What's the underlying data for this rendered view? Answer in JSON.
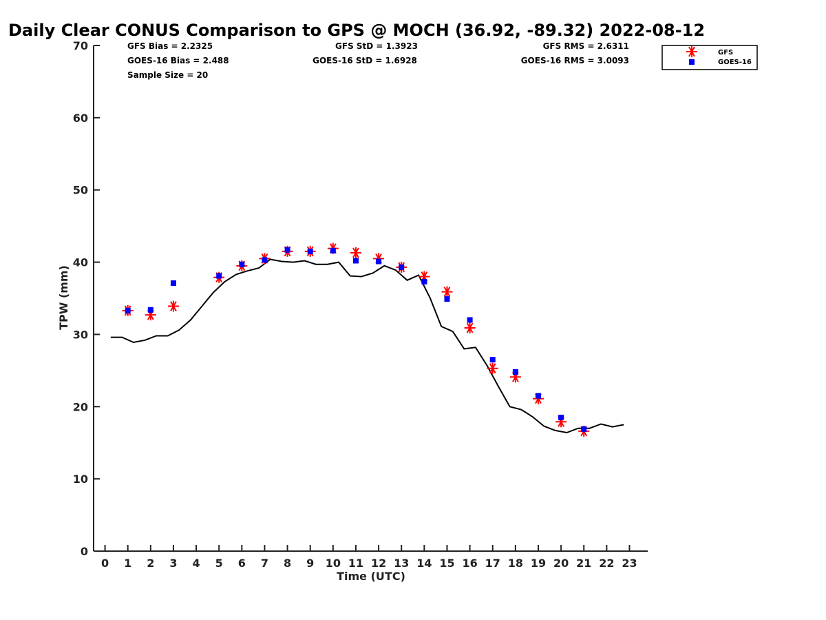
{
  "chart_data": {
    "type": "scatter",
    "title": "Daily Clear CONUS Comparison to GPS @ MOCH (36.92, -89.32) 2022-08-12",
    "xlabel": "Time (UTC)",
    "ylabel": "TPW (mm)",
    "xlim": [
      -0.5,
      23.8
    ],
    "ylim": [
      0,
      70
    ],
    "x_ticks": [
      0,
      1,
      2,
      3,
      4,
      5,
      6,
      7,
      8,
      9,
      10,
      11,
      12,
      13,
      14,
      15,
      16,
      17,
      18,
      19,
      20,
      21,
      22,
      23
    ],
    "y_ticks": [
      0,
      10,
      20,
      30,
      40,
      50,
      60,
      70
    ],
    "grid": false,
    "legend_position": "top-right",
    "stats": {
      "gfs_bias": "GFS Bias = 2.2325",
      "goes_bias": "GOES-16 Bias = 2.488",
      "sample_size": "Sample Size = 20",
      "gfs_std": "GFS StD = 1.3923",
      "goes_std": "GOES-16 StD = 1.6928",
      "gfs_rms": "GFS RMS = 2.6311",
      "goes_rms": "GOES-16 RMS = 3.0093"
    },
    "series": [
      {
        "name": "GFS",
        "marker": "asterisk",
        "color": "#ff0000",
        "x": [
          1,
          2,
          3,
          5,
          6,
          7,
          8,
          9,
          10,
          11,
          12,
          13,
          14,
          15,
          16,
          17,
          18,
          19,
          20,
          21
        ],
        "y": [
          33.3,
          32.7,
          33.9,
          37.9,
          39.5,
          40.5,
          41.5,
          41.5,
          41.9,
          41.3,
          40.5,
          39.3,
          38.0,
          35.9,
          30.9,
          25.3,
          24.1,
          21.1,
          17.9,
          16.6
        ]
      },
      {
        "name": "GOES-16",
        "marker": "square",
        "color": "#0000ff",
        "x": [
          1,
          2,
          3,
          5,
          6,
          7,
          8,
          9,
          10,
          11,
          12,
          13,
          14,
          15,
          16,
          17,
          18,
          19,
          20,
          21
        ],
        "y": [
          33.3,
          33.4,
          37.1,
          38.1,
          39.7,
          40.3,
          41.7,
          41.5,
          41.6,
          40.2,
          40.1,
          39.3,
          37.3,
          34.9,
          32.0,
          26.5,
          24.8,
          21.5,
          18.5,
          16.9
        ]
      },
      {
        "type": "line",
        "color": "#000000",
        "x": [
          0.25,
          0.75,
          1.25,
          1.75,
          2.25,
          2.75,
          3.25,
          3.75,
          4.25,
          4.75,
          5.25,
          5.75,
          6.25,
          6.75,
          7.25,
          7.75,
          8.25,
          8.75,
          9.25,
          9.75,
          10.25,
          10.75,
          11.25,
          11.75,
          12.25,
          12.75,
          13.25,
          13.75,
          14.25,
          14.75,
          15.25,
          15.75,
          16.25,
          16.75,
          17.25,
          17.75,
          18.25,
          18.75,
          19.25,
          19.75,
          20.25,
          20.75,
          21.25,
          21.75,
          22.25,
          22.75
        ],
        "y": [
          29.6,
          29.6,
          28.9,
          29.2,
          29.8,
          29.8,
          30.6,
          32.0,
          33.9,
          35.8,
          37.3,
          38.3,
          38.8,
          39.2,
          40.4,
          40.1,
          40.0,
          40.2,
          39.7,
          39.7,
          40.0,
          38.1,
          38.0,
          38.5,
          39.5,
          38.9,
          37.5,
          38.2,
          35.1,
          31.1,
          30.4,
          28.0,
          28.2,
          25.7,
          22.8,
          20.0,
          19.6,
          18.6,
          17.3,
          16.7,
          16.4,
          17.0,
          17.0,
          17.6,
          17.2,
          17.5
        ]
      }
    ]
  }
}
